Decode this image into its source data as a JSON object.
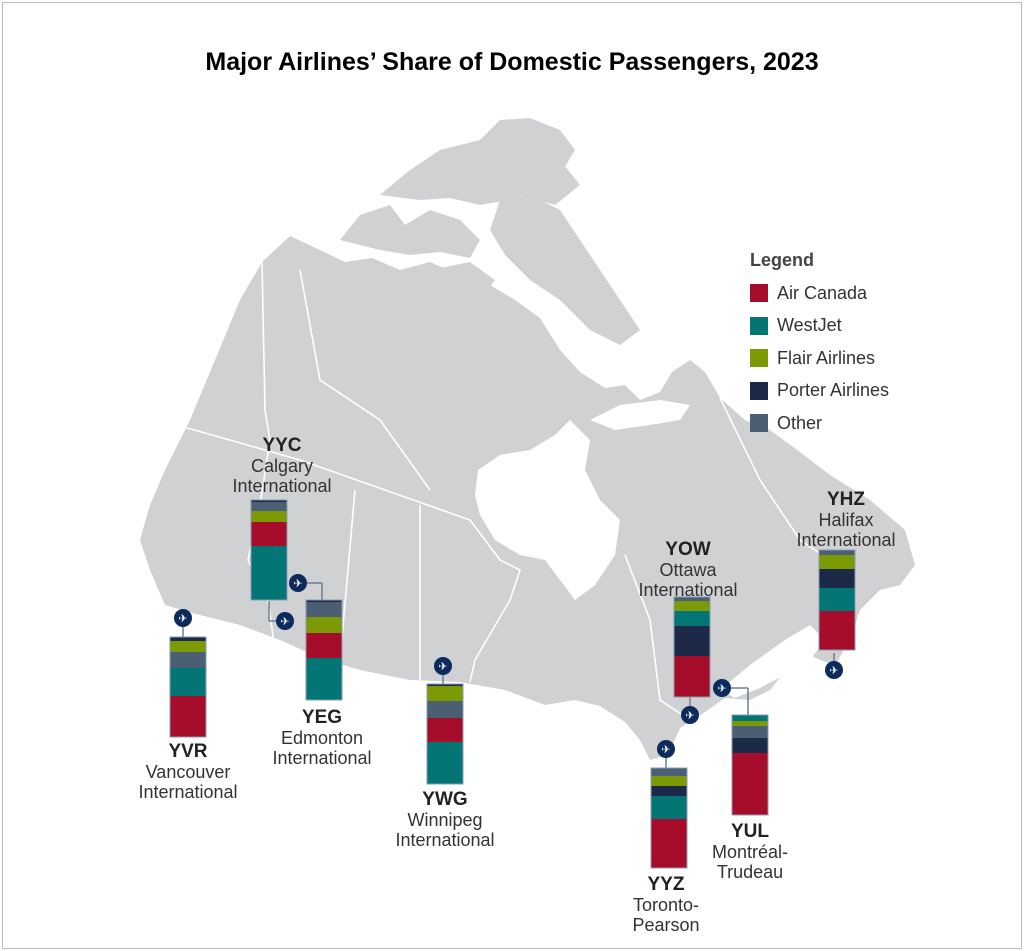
{
  "title": "Major Airlines’ Share of Domestic Passengers, 2023",
  "legend": {
    "heading": "Legend",
    "items": [
      {
        "label": "Air Canada",
        "color": "#a50d2a"
      },
      {
        "label": "WestJet",
        "color": "#037574"
      },
      {
        "label": "Flair Airlines",
        "color": "#7c9a05"
      },
      {
        "label": "Porter Airlines",
        "color": "#1c2a47"
      },
      {
        "label": "Other",
        "color": "#4a5e74"
      }
    ]
  },
  "colors": {
    "land": "#d0d1d3",
    "water": "#ffffff",
    "border": "#ffffff",
    "icon": "#0d2a5c"
  },
  "airports": [
    {
      "code": "YVR",
      "line1": "Vancouver",
      "line2": "International"
    },
    {
      "code": "YYC",
      "line1": "Calgary",
      "line2": "International"
    },
    {
      "code": "YEG",
      "line1": "Edmonton",
      "line2": "International"
    },
    {
      "code": "YWG",
      "line1": "Winnipeg",
      "line2": "International"
    },
    {
      "code": "YOW",
      "line1": "Ottawa",
      "line2": "International"
    },
    {
      "code": "YHZ",
      "line1": "Halifax",
      "line2": "International"
    },
    {
      "code": "YUL",
      "line1": "Montréal-",
      "line2": "Trudeau"
    },
    {
      "code": "YYZ",
      "line1": "Toronto-",
      "line2": "Pearson"
    }
  ],
  "chart_data": {
    "type": "bar",
    "stacked": true,
    "unit": "percent of domestic passengers (estimated from bar segments)",
    "categories": [
      "YVR",
      "YYC",
      "YEG",
      "YWG",
      "YOW",
      "YHZ",
      "YUL",
      "YYZ"
    ],
    "series": [
      {
        "name": "Air Canada",
        "values": [
          41,
          24,
          25,
          24,
          41,
          39,
          62,
          49
        ]
      },
      {
        "name": "WestJet",
        "values": [
          28,
          54,
          42,
          42,
          15,
          23,
          6,
          23
        ]
      },
      {
        "name": "Flair Airlines",
        "values": [
          11,
          11,
          16,
          15,
          10,
          14,
          5,
          10
        ]
      },
      {
        "name": "Porter Airlines",
        "values": [
          4,
          2,
          2,
          2,
          30,
          19,
          15,
          10
        ]
      },
      {
        "name": "Other",
        "values": [
          16,
          9,
          15,
          17,
          4,
          5,
          12,
          8
        ]
      }
    ],
    "stack_order_bottom_to_top": [
      [
        "Air Canada",
        "WestJet",
        "Other",
        "Flair Airlines",
        "Porter Airlines"
      ],
      [
        "WestJet",
        "Air Canada",
        "Flair Airlines",
        "Other",
        "Porter Airlines"
      ],
      [
        "WestJet",
        "Air Canada",
        "Flair Airlines",
        "Other",
        "Porter Airlines"
      ],
      [
        "WestJet",
        "Air Canada",
        "Other",
        "Flair Airlines",
        "Porter Airlines"
      ],
      [
        "Air Canada",
        "Porter Airlines",
        "WestJet",
        "Flair Airlines",
        "Other"
      ],
      [
        "Air Canada",
        "WestJet",
        "Porter Airlines",
        "Flair Airlines",
        "Other"
      ],
      [
        "Air Canada",
        "Porter Airlines",
        "Other",
        "Flair Airlines",
        "WestJet"
      ],
      [
        "Air Canada",
        "WestJet",
        "Porter Airlines",
        "Flair Airlines",
        "Other"
      ]
    ],
    "ylim": [
      0,
      100
    ],
    "title": "Major Airlines’ Share of Domestic Passengers, 2023"
  }
}
